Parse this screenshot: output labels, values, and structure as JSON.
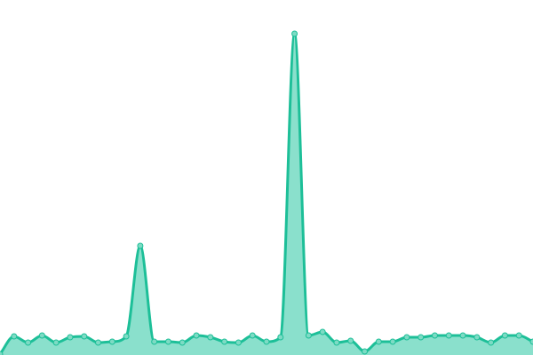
{
  "chart_data": {
    "type": "area",
    "title": "",
    "xlabel": "",
    "ylabel": "",
    "x": [
      0,
      1,
      2,
      3,
      4,
      5,
      6,
      7,
      8,
      9,
      10,
      11,
      12,
      13,
      14,
      15,
      16,
      17,
      18,
      19,
      20,
      21,
      22,
      23,
      24,
      25,
      26,
      27,
      28,
      29,
      30,
      31,
      32,
      33,
      34,
      35,
      36,
      37,
      38
    ],
    "values": [
      1,
      21,
      14,
      22,
      14,
      20,
      21,
      14,
      15,
      21,
      123,
      15,
      15,
      14,
      22,
      20,
      15,
      14,
      22,
      15,
      20,
      362,
      22,
      26,
      14,
      16,
      4,
      15,
      15,
      20,
      20,
      22,
      22,
      22,
      20,
      14,
      22,
      22,
      15
    ],
    "ylim": [
      0,
      400
    ],
    "grid": false,
    "axes_visible": false,
    "smooth": true,
    "markers": true,
    "colors": {
      "line": "#1dbf98",
      "fill": "#8ae0cc",
      "marker": "#7ddbc4"
    }
  }
}
